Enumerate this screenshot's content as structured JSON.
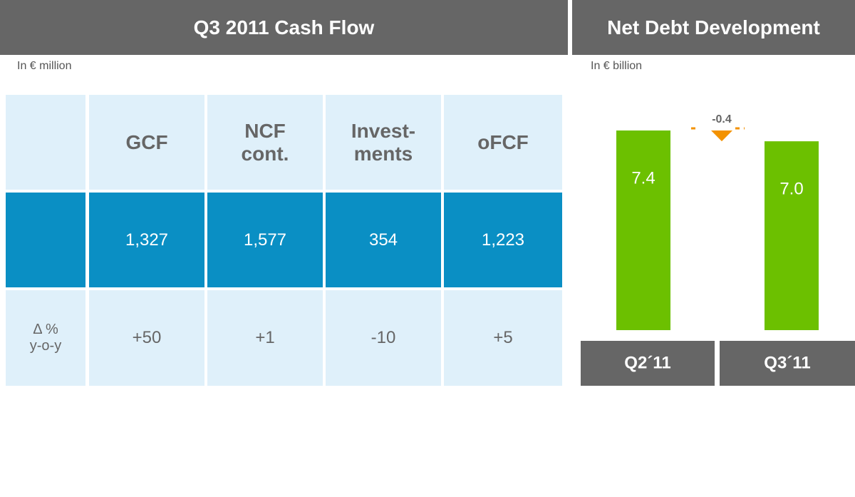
{
  "left": {
    "title": "Q3 2011 Cash Flow",
    "unit": "In € million"
  },
  "table": {
    "header": [
      "GCF",
      "NCF\ncont.",
      "Invest-\nments",
      "oFCF"
    ],
    "rows": [
      {
        "values": [
          "1,327",
          "1,577",
          "354",
          "1,223"
        ]
      },
      {
        "label": "Δ %\ny-o-y",
        "values": [
          "+50",
          "+1",
          "-10",
          "+5"
        ]
      }
    ]
  },
  "chart_data": {
    "type": "waterfall",
    "title": "Net Debt Development",
    "subtitle": "In € billion",
    "categories": [
      "Q2´11",
      null,
      "Q3´11"
    ],
    "values": [
      7.4,
      -0.4,
      7.0
    ],
    "value_labels": [
      "7.4",
      "-0.4",
      "7.0"
    ],
    "colors": [
      "#6cc000",
      "#f39200",
      "#6cc000"
    ]
  }
}
